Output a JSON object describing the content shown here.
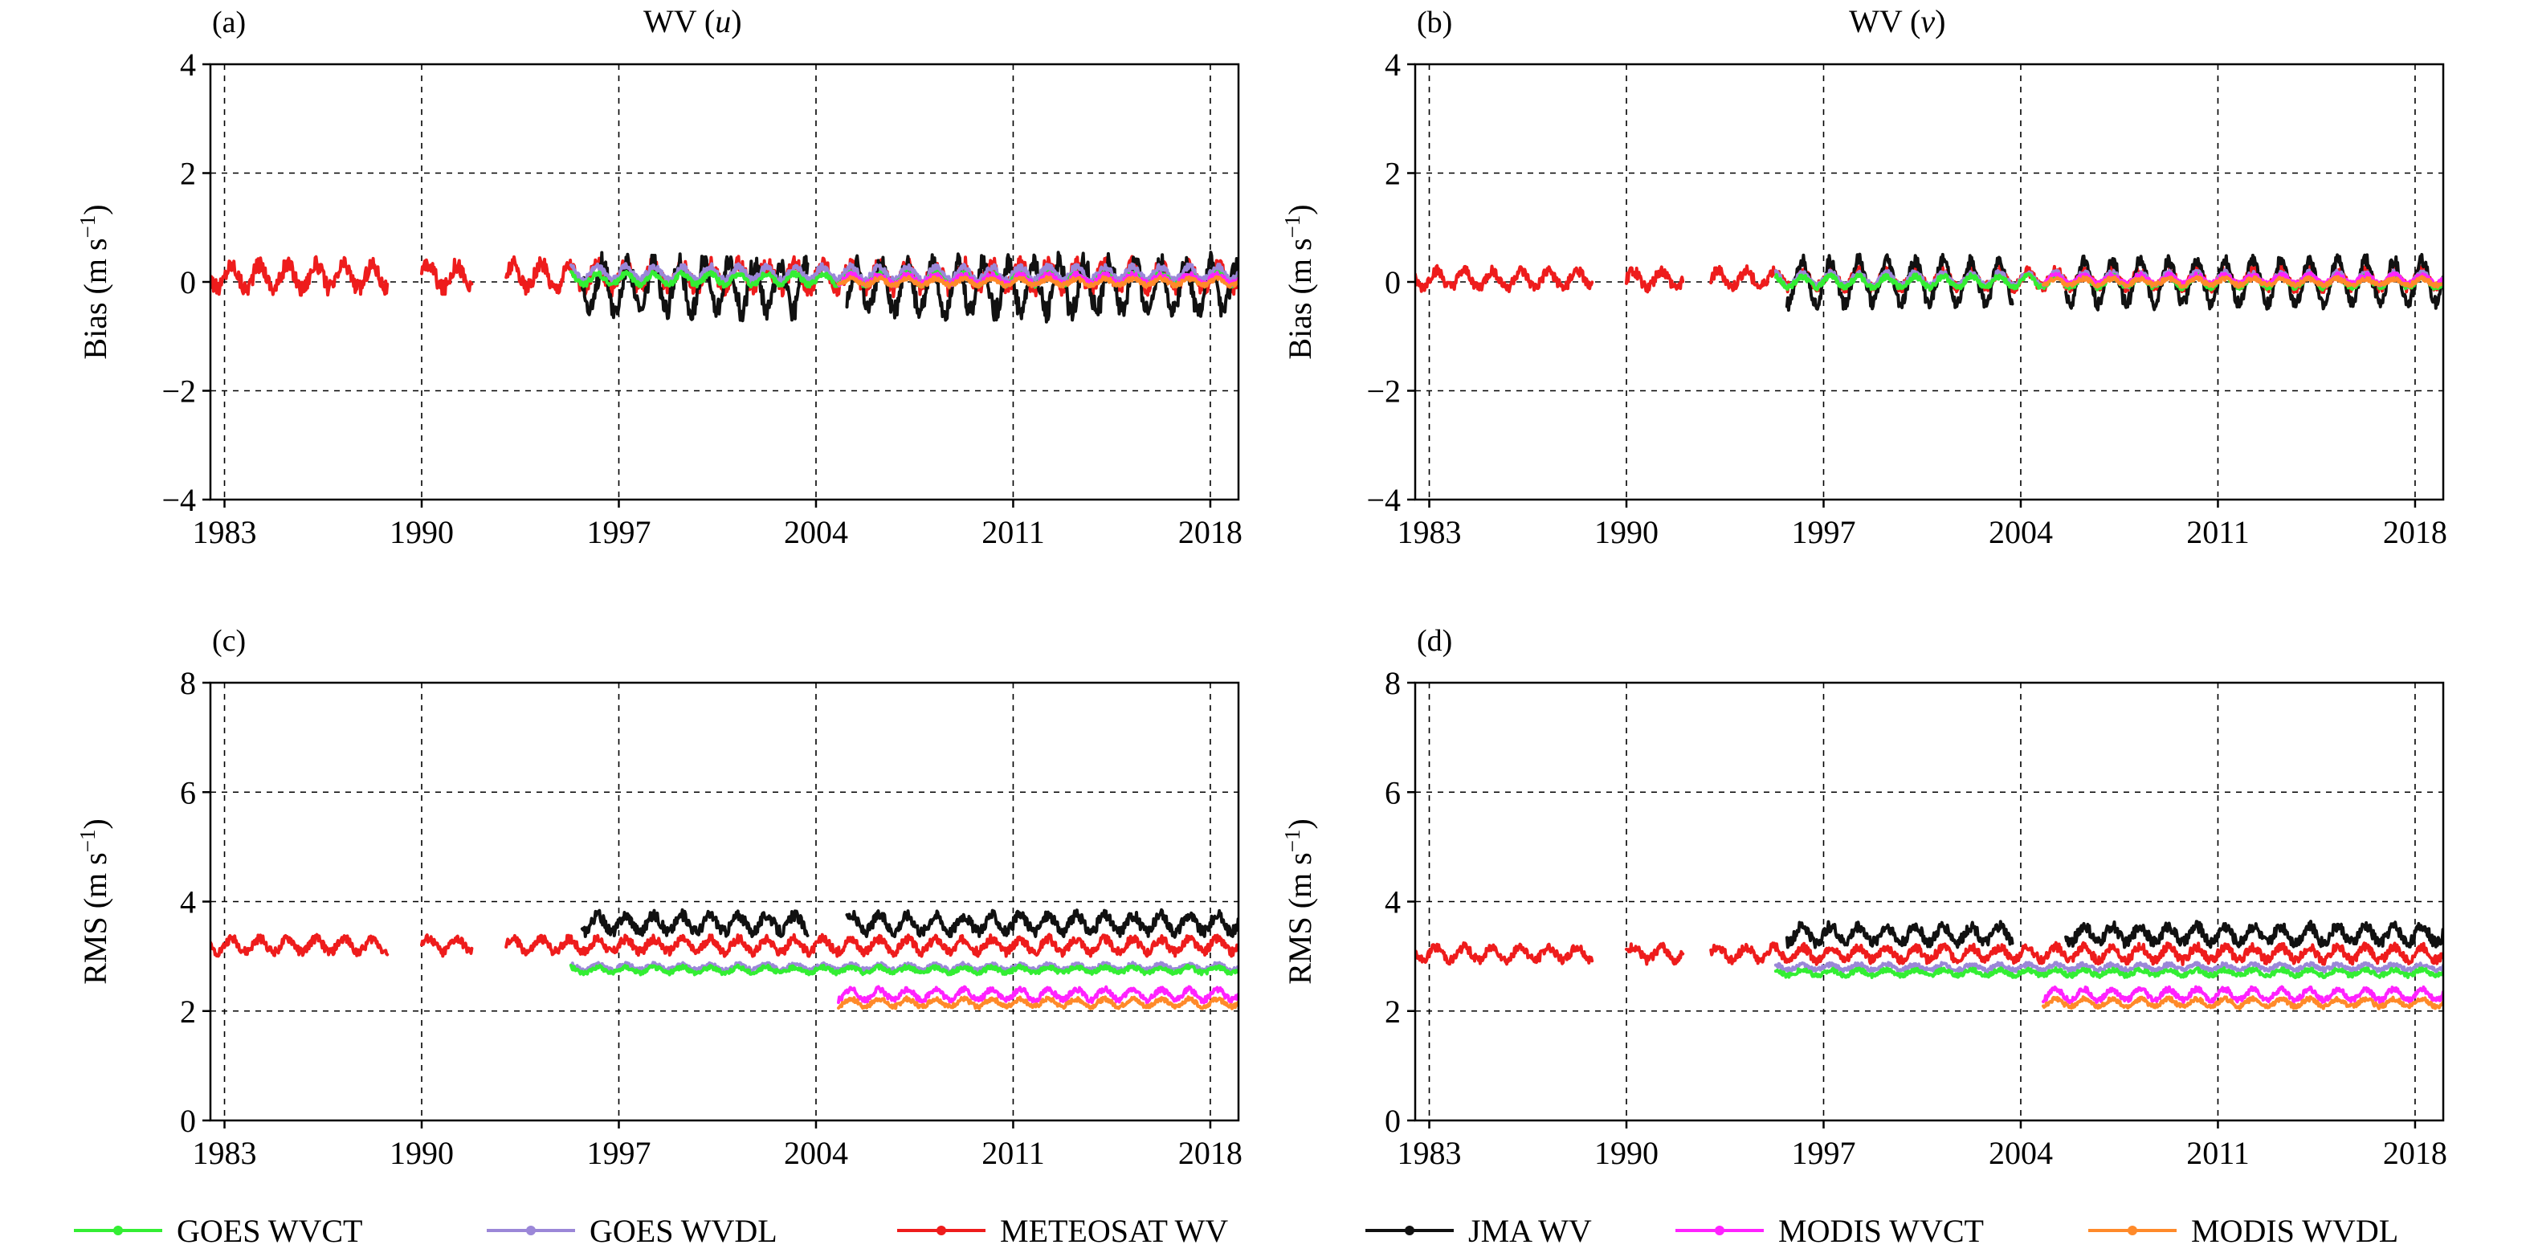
{
  "legend": [
    {
      "name": "GOES WVCT",
      "color": "#33ee33"
    },
    {
      "name": "GOES WVDL",
      "color": "#9b87d8"
    },
    {
      "name": "METEOSAT WV",
      "color": "#ee1c1c"
    },
    {
      "name": "JMA WV",
      "color": "#111111"
    },
    {
      "name": "MODIS WVCT",
      "color": "#ff22ff"
    },
    {
      "name": "MODIS WVDL",
      "color": "#ff8a2a"
    }
  ],
  "chart_data": [
    {
      "panel": "(a)",
      "type": "line",
      "title": "WV (u)",
      "title_text": "WV (",
      "title_var": "u",
      "title_close": ")",
      "ylabel": "Bias",
      "ylabel_unit": "(m s",
      "ylabel_exp": "−1",
      "ylabel_close": ")",
      "xlim": [
        1982.5,
        2019.0
      ],
      "ylim": [
        -4,
        4
      ],
      "xticks": [
        1983,
        1990,
        1997,
        2004,
        2011,
        2018
      ],
      "yticks": [
        -4,
        -2,
        0,
        2,
        4
      ],
      "ytick_labels": [
        "−4",
        "−2",
        "0",
        "2",
        "4"
      ],
      "grid": true,
      "series": [
        {
          "name": "METEOSAT WV",
          "segments": [
            [
              1982.5,
              1988.8
            ],
            [
              1990.0,
              1991.8
            ],
            [
              1993.0,
              2019.0
            ]
          ],
          "mean": 0.1,
          "amp": 0.22,
          "period": 1.0,
          "noise": 0.15
        },
        {
          "name": "JMA WV",
          "segments": [
            [
              1995.7,
              2003.7
            ],
            [
              2005.1,
              2019.0
            ]
          ],
          "mean": -0.1,
          "amp": 0.45,
          "period": 0.9,
          "noise": 0.2
        },
        {
          "name": "GOES WVDL",
          "segments": [
            [
              1995.3,
              2019.0
            ]
          ],
          "mean": 0.15,
          "amp": 0.12,
          "period": 1.0,
          "noise": 0.07
        },
        {
          "name": "GOES WVCT",
          "segments": [
            [
              1995.3,
              2019.0
            ]
          ],
          "mean": 0.05,
          "amp": 0.1,
          "period": 1.0,
          "noise": 0.05
        },
        {
          "name": "MODIS WVCT",
          "segments": [
            [
              2004.8,
              2019.0
            ]
          ],
          "mean": 0.05,
          "amp": 0.08,
          "period": 1.0,
          "noise": 0.05
        },
        {
          "name": "MODIS WVDL",
          "segments": [
            [
              2004.8,
              2019.0
            ]
          ],
          "mean": 0.0,
          "amp": 0.06,
          "period": 1.0,
          "noise": 0.04
        }
      ]
    },
    {
      "panel": "(b)",
      "type": "line",
      "title": "WV (v)",
      "title_text": "WV (",
      "title_var": "v",
      "title_close": ")",
      "ylabel": "Bias",
      "ylabel_unit": "(m s",
      "ylabel_exp": "−1",
      "ylabel_close": ")",
      "xlim": [
        1982.5,
        2019.0
      ],
      "ylim": [
        -4,
        4
      ],
      "xticks": [
        1983,
        1990,
        1997,
        2004,
        2011,
        2018
      ],
      "yticks": [
        -4,
        -2,
        0,
        2,
        4
      ],
      "ytick_labels": [
        "−4",
        "−2",
        "0",
        "2",
        "4"
      ],
      "grid": true,
      "series": [
        {
          "name": "METEOSAT WV",
          "segments": [
            [
              1982.5,
              1988.8
            ],
            [
              1990.0,
              1992.0
            ],
            [
              1993.0,
              2019.0
            ]
          ],
          "mean": 0.05,
          "amp": 0.15,
          "period": 1.0,
          "noise": 0.1
        },
        {
          "name": "JMA WV",
          "segments": [
            [
              1995.7,
              2003.7
            ],
            [
              2005.6,
              2019.0
            ]
          ],
          "mean": 0.0,
          "amp": 0.4,
          "period": 1.0,
          "noise": 0.12
        },
        {
          "name": "GOES WVDL",
          "segments": [
            [
              1995.3,
              2019.0
            ]
          ],
          "mean": 0.05,
          "amp": 0.12,
          "period": 1.0,
          "noise": 0.05
        },
        {
          "name": "GOES WVCT",
          "segments": [
            [
              1995.3,
              2019.0
            ]
          ],
          "mean": 0.0,
          "amp": 0.1,
          "period": 1.0,
          "noise": 0.05
        },
        {
          "name": "MODIS WVCT",
          "segments": [
            [
              2004.8,
              2019.0
            ]
          ],
          "mean": 0.05,
          "amp": 0.08,
          "period": 1.0,
          "noise": 0.04
        },
        {
          "name": "MODIS WVDL",
          "segments": [
            [
              2004.8,
              2019.0
            ]
          ],
          "mean": 0.0,
          "amp": 0.06,
          "period": 1.0,
          "noise": 0.04
        }
      ]
    },
    {
      "panel": "(c)",
      "type": "line",
      "ylabel": "RMS",
      "ylabel_unit": "(m s",
      "ylabel_exp": "−1",
      "ylabel_close": ")",
      "xlim": [
        1982.5,
        2019.0
      ],
      "ylim": [
        0,
        8
      ],
      "xticks": [
        1983,
        1990,
        1997,
        2004,
        2011,
        2018
      ],
      "yticks": [
        0,
        2,
        4,
        6,
        8
      ],
      "ytick_labels": [
        "0",
        "2",
        "4",
        "6",
        "8"
      ],
      "grid": true,
      "series": [
        {
          "name": "METEOSAT WV",
          "segments": [
            [
              1982.5,
              1988.8
            ],
            [
              1990.0,
              1991.8
            ],
            [
              1993.0,
              2019.0
            ]
          ],
          "mean": 3.2,
          "amp": 0.12,
          "period": 1.0,
          "noise": 0.08
        },
        {
          "name": "JMA WV",
          "segments": [
            [
              1995.7,
              2003.7
            ],
            [
              2005.1,
              2019.0
            ]
          ],
          "mean": 3.6,
          "amp": 0.15,
          "period": 1.0,
          "noise": 0.1
        },
        {
          "name": "GOES WVDL",
          "segments": [
            [
              1995.3,
              2019.0
            ]
          ],
          "mean": 2.8,
          "amp": 0.05,
          "period": 1.0,
          "noise": 0.04
        },
        {
          "name": "GOES WVCT",
          "segments": [
            [
              1995.3,
              2019.0
            ]
          ],
          "mean": 2.75,
          "amp": 0.05,
          "period": 1.0,
          "noise": 0.04
        },
        {
          "name": "MODIS WVCT",
          "segments": [
            [
              2004.8,
              2019.0
            ]
          ],
          "mean": 2.3,
          "amp": 0.1,
          "period": 1.0,
          "noise": 0.05
        },
        {
          "name": "MODIS WVDL",
          "segments": [
            [
              2004.8,
              2019.0
            ]
          ],
          "mean": 2.15,
          "amp": 0.07,
          "period": 1.0,
          "noise": 0.04
        }
      ]
    },
    {
      "panel": "(d)",
      "type": "line",
      "ylabel": "RMS",
      "ylabel_unit": "(m s",
      "ylabel_exp": "−1",
      "ylabel_close": ")",
      "xlim": [
        1982.5,
        2019.0
      ],
      "ylim": [
        0,
        8
      ],
      "xticks": [
        1983,
        1990,
        1997,
        2004,
        2011,
        2018
      ],
      "yticks": [
        0,
        2,
        4,
        6,
        8
      ],
      "ytick_labels": [
        "0",
        "2",
        "4",
        "6",
        "8"
      ],
      "grid": true,
      "series": [
        {
          "name": "METEOSAT WV",
          "segments": [
            [
              1982.5,
              1988.8
            ],
            [
              1990.0,
              1992.0
            ],
            [
              1993.0,
              2019.0
            ]
          ],
          "mean": 3.05,
          "amp": 0.12,
          "period": 1.0,
          "noise": 0.08
        },
        {
          "name": "JMA WV",
          "segments": [
            [
              1995.7,
              2003.7
            ],
            [
              2005.6,
              2019.0
            ]
          ],
          "mean": 3.4,
          "amp": 0.15,
          "period": 1.0,
          "noise": 0.1
        },
        {
          "name": "GOES WVDL",
          "segments": [
            [
              1995.3,
              2019.0
            ]
          ],
          "mean": 2.8,
          "amp": 0.05,
          "period": 1.0,
          "noise": 0.04
        },
        {
          "name": "GOES WVCT",
          "segments": [
            [
              1995.3,
              2019.0
            ]
          ],
          "mean": 2.7,
          "amp": 0.05,
          "period": 1.0,
          "noise": 0.04
        },
        {
          "name": "MODIS WVCT",
          "segments": [
            [
              2004.8,
              2019.0
            ]
          ],
          "mean": 2.3,
          "amp": 0.1,
          "period": 1.0,
          "noise": 0.05
        },
        {
          "name": "MODIS WVDL",
          "segments": [
            [
              2004.8,
              2019.0
            ]
          ],
          "mean": 2.15,
          "amp": 0.07,
          "period": 1.0,
          "noise": 0.04
        }
      ]
    }
  ]
}
